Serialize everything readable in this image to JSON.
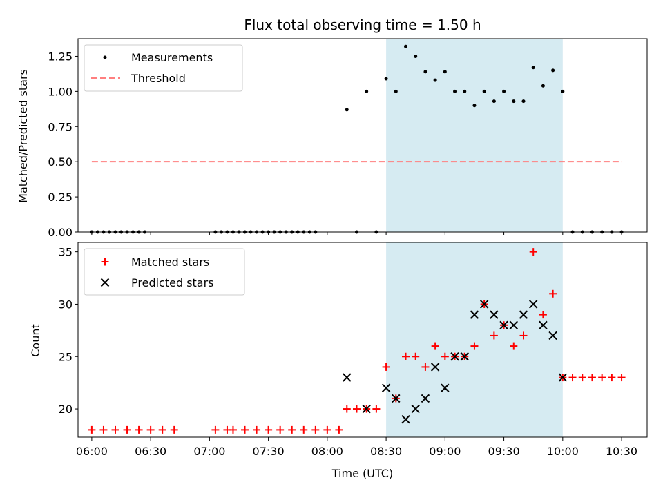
{
  "chart_data": [
    {
      "type": "scatter",
      "title": "Flux total observing time = 1.50 h",
      "xlabel": "",
      "ylabel": "Matched/Predicted stars",
      "ylim": [
        0,
        1.375
      ],
      "yticks": [
        "0.00",
        "0.25",
        "0.50",
        "0.75",
        "1.00",
        "1.25"
      ],
      "legend_position": "top-left",
      "highlight_window": {
        "start": "08:30",
        "end": "10:00",
        "color": "#add8e6"
      },
      "threshold": {
        "name": "Threshold",
        "value": 0.5,
        "from": "06:00",
        "to": "10:30",
        "color": "#ff7f7f",
        "style": "dashed"
      },
      "series": [
        {
          "name": "Measurements",
          "color": "#000000",
          "marker": "dot",
          "points": [
            [
              "06:00",
              0
            ],
            [
              "06:03",
              0
            ],
            [
              "06:06",
              0
            ],
            [
              "06:09",
              0
            ],
            [
              "06:12",
              0
            ],
            [
              "06:15",
              0
            ],
            [
              "06:18",
              0
            ],
            [
              "06:21",
              0
            ],
            [
              "06:24",
              0
            ],
            [
              "06:27",
              0
            ],
            [
              "07:03",
              0
            ],
            [
              "07:06",
              0
            ],
            [
              "07:09",
              0
            ],
            [
              "07:12",
              0
            ],
            [
              "07:15",
              0
            ],
            [
              "07:18",
              0
            ],
            [
              "07:21",
              0
            ],
            [
              "07:24",
              0
            ],
            [
              "07:27",
              0
            ],
            [
              "07:30",
              0
            ],
            [
              "07:33",
              0
            ],
            [
              "07:36",
              0
            ],
            [
              "07:39",
              0
            ],
            [
              "07:42",
              0
            ],
            [
              "07:45",
              0
            ],
            [
              "07:48",
              0
            ],
            [
              "07:51",
              0
            ],
            [
              "07:54",
              0
            ],
            [
              "08:10",
              0.87
            ],
            [
              "08:15",
              0
            ],
            [
              "08:20",
              1.0
            ],
            [
              "08:25",
              0
            ],
            [
              "08:30",
              1.09
            ],
            [
              "08:35",
              1.0
            ],
            [
              "08:40",
              1.32
            ],
            [
              "08:45",
              1.25
            ],
            [
              "08:50",
              1.14
            ],
            [
              "08:55",
              1.08
            ],
            [
              "09:00",
              1.14
            ],
            [
              "09:05",
              1.0
            ],
            [
              "09:10",
              1.0
            ],
            [
              "09:15",
              0.9
            ],
            [
              "09:20",
              1.0
            ],
            [
              "09:25",
              0.93
            ],
            [
              "09:30",
              1.0
            ],
            [
              "09:35",
              0.93
            ],
            [
              "09:40",
              0.93
            ],
            [
              "09:45",
              1.17
            ],
            [
              "09:50",
              1.04
            ],
            [
              "09:55",
              1.15
            ],
            [
              "10:00",
              1.0
            ],
            [
              "10:05",
              0
            ],
            [
              "10:10",
              0
            ],
            [
              "10:15",
              0
            ],
            [
              "10:20",
              0
            ],
            [
              "10:25",
              0
            ],
            [
              "10:30",
              0
            ]
          ]
        }
      ]
    },
    {
      "type": "scatter",
      "title": "",
      "xlabel": "Time (UTC)",
      "ylabel": "Count",
      "ylim": [
        17.3,
        35.9
      ],
      "yticks": [
        "20",
        "25",
        "30",
        "35"
      ],
      "xticks": [
        "06:00",
        "06:30",
        "07:00",
        "07:30",
        "08:00",
        "08:30",
        "09:00",
        "09:30",
        "10:00",
        "10:30"
      ],
      "xlim": [
        "05:53",
        "10:43"
      ],
      "legend_position": "top-left",
      "highlight_window": {
        "start": "08:30",
        "end": "10:00",
        "color": "#add8e6"
      },
      "series": [
        {
          "name": "Matched stars",
          "color": "#ff0000",
          "marker": "plus",
          "points": [
            [
              "06:00",
              18
            ],
            [
              "06:06",
              18
            ],
            [
              "06:12",
              18
            ],
            [
              "06:18",
              18
            ],
            [
              "06:24",
              18
            ],
            [
              "06:30",
              18
            ],
            [
              "06:36",
              18
            ],
            [
              "06:42",
              18
            ],
            [
              "07:03",
              18
            ],
            [
              "07:09",
              18
            ],
            [
              "07:12",
              18
            ],
            [
              "07:18",
              18
            ],
            [
              "07:24",
              18
            ],
            [
              "07:30",
              18
            ],
            [
              "07:36",
              18
            ],
            [
              "07:42",
              18
            ],
            [
              "07:48",
              18
            ],
            [
              "07:54",
              18
            ],
            [
              "08:00",
              18
            ],
            [
              "08:06",
              18
            ],
            [
              "08:10",
              20
            ],
            [
              "08:15",
              20
            ],
            [
              "08:20",
              20
            ],
            [
              "08:25",
              20
            ],
            [
              "08:30",
              24
            ],
            [
              "08:35",
              21
            ],
            [
              "08:40",
              25
            ],
            [
              "08:45",
              25
            ],
            [
              "08:50",
              24
            ],
            [
              "08:55",
              26
            ],
            [
              "09:00",
              25
            ],
            [
              "09:05",
              25
            ],
            [
              "09:10",
              25
            ],
            [
              "09:15",
              26
            ],
            [
              "09:20",
              30
            ],
            [
              "09:25",
              27
            ],
            [
              "09:30",
              28
            ],
            [
              "09:35",
              26
            ],
            [
              "09:40",
              27
            ],
            [
              "09:45",
              35
            ],
            [
              "09:50",
              29
            ],
            [
              "09:55",
              31
            ],
            [
              "10:00",
              23
            ],
            [
              "10:05",
              23
            ],
            [
              "10:10",
              23
            ],
            [
              "10:15",
              23
            ],
            [
              "10:20",
              23
            ],
            [
              "10:25",
              23
            ],
            [
              "10:30",
              23
            ]
          ]
        },
        {
          "name": "Predicted stars",
          "color": "#000000",
          "marker": "x",
          "points": [
            [
              "08:10",
              23
            ],
            [
              "08:20",
              20
            ],
            [
              "08:30",
              22
            ],
            [
              "08:35",
              21
            ],
            [
              "08:40",
              19
            ],
            [
              "08:45",
              20
            ],
            [
              "08:50",
              21
            ],
            [
              "08:55",
              24
            ],
            [
              "09:00",
              22
            ],
            [
              "09:05",
              25
            ],
            [
              "09:10",
              25
            ],
            [
              "09:15",
              29
            ],
            [
              "09:20",
              30
            ],
            [
              "09:25",
              29
            ],
            [
              "09:30",
              28
            ],
            [
              "09:35",
              28
            ],
            [
              "09:40",
              29
            ],
            [
              "09:45",
              30
            ],
            [
              "09:50",
              28
            ],
            [
              "09:55",
              27
            ],
            [
              "10:00",
              23
            ]
          ]
        }
      ]
    }
  ]
}
